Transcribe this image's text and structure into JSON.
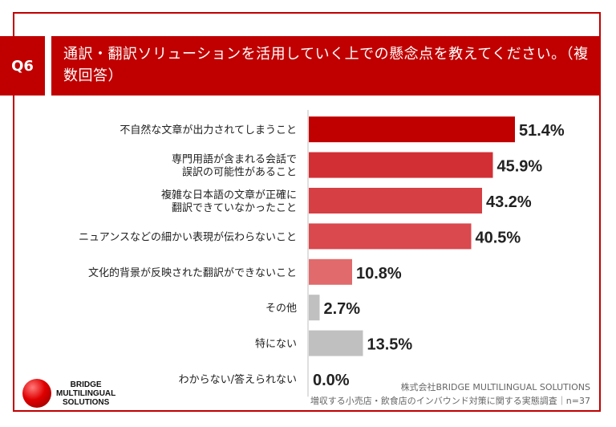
{
  "question_badge": "Q6",
  "question_title": "通訳・翻訳ソリューションを活用していく上での懸念点を教えてください。（複数回答）",
  "chart_data": {
    "type": "bar",
    "orientation": "horizontal",
    "categories": [
      [
        "不自然な文章が出力されてしまうこと"
      ],
      [
        "専門用語が含まれる会話で",
        "誤訳の可能性があること"
      ],
      [
        "複雑な日本語の文章が正確に",
        "翻訳できていなかったこと"
      ],
      [
        "ニュアンスなどの細かい表現が伝わらないこと"
      ],
      [
        "文化的背景が反映された翻訳ができないこと"
      ],
      [
        "その他"
      ],
      [
        "特にない"
      ],
      [
        "わからない/答えられない"
      ]
    ],
    "values": [
      51.4,
      45.9,
      43.2,
      40.5,
      10.8,
      2.7,
      13.5,
      0.0
    ],
    "value_labels": [
      "51.4%",
      "45.9%",
      "43.2%",
      "40.5%",
      "10.8%",
      "2.7%",
      "13.5%",
      "0.0%"
    ],
    "bar_colors": [
      "#c00000",
      "#d22f35",
      "#d63f44",
      "#d9494e",
      "#e16a6c",
      "#c0c0c0",
      "#c0c0c0",
      "#c0c0c0"
    ],
    "xlim": [
      0,
      100
    ]
  },
  "footer": {
    "company": "株式会社BRIDGE MULTILINGUAL SOLUTIONS",
    "survey": "増収する小売店・飲食店のインバウンド対策に関する実態調査｜n=37"
  },
  "logo": {
    "line1": "BRIDGE",
    "line2": "MULTILINGUAL",
    "line3": "SOLUTIONS"
  }
}
